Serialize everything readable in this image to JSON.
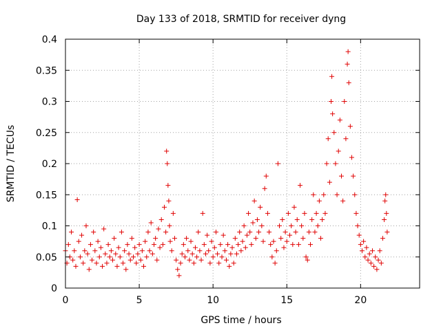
{
  "chart_data": {
    "type": "scatter",
    "title": "Day 133 of 2018, SRMTID for receiver dyng",
    "xlabel": "GPS time / hours",
    "ylabel": "SRMTID / TECUs",
    "xlim": [
      0,
      24
    ],
    "ylim": [
      0,
      0.4
    ],
    "xticks": [
      0,
      5,
      10,
      15,
      20
    ],
    "yticks": [
      0,
      0.05,
      0.1,
      0.15,
      0.2,
      0.25,
      0.3,
      0.35,
      0.4
    ],
    "xtick_labels": [
      "0",
      "5",
      "10",
      "15",
      "20"
    ],
    "ytick_labels": [
      "0",
      "0.05",
      "0.1",
      "0.15",
      "0.2",
      "0.25",
      "0.3",
      "0.35",
      "0.4"
    ],
    "grid": true,
    "marker": "+",
    "color": "#e00000",
    "series": [
      {
        "name": "SRMTID",
        "points": [
          [
            0.0,
            0.06
          ],
          [
            0.1,
            0.04
          ],
          [
            0.2,
            0.07
          ],
          [
            0.3,
            0.05
          ],
          [
            0.4,
            0.09
          ],
          [
            0.5,
            0.045
          ],
          [
            0.6,
            0.06
          ],
          [
            0.7,
            0.035
          ],
          [
            0.8,
            0.142
          ],
          [
            0.9,
            0.075
          ],
          [
            1.0,
            0.05
          ],
          [
            1.1,
            0.085
          ],
          [
            1.2,
            0.04
          ],
          [
            1.3,
            0.06
          ],
          [
            1.4,
            0.1
          ],
          [
            1.5,
            0.055
          ],
          [
            1.6,
            0.03
          ],
          [
            1.7,
            0.07
          ],
          [
            1.8,
            0.045
          ],
          [
            1.9,
            0.09
          ],
          [
            2.0,
            0.06
          ],
          [
            2.1,
            0.04
          ],
          [
            2.2,
            0.075
          ],
          [
            2.3,
            0.05
          ],
          [
            2.4,
            0.065
          ],
          [
            2.5,
            0.035
          ],
          [
            2.6,
            0.095
          ],
          [
            2.7,
            0.055
          ],
          [
            2.8,
            0.04
          ],
          [
            2.9,
            0.07
          ],
          [
            3.0,
            0.05
          ],
          [
            3.1,
            0.06
          ],
          [
            3.2,
            0.045
          ],
          [
            3.3,
            0.08
          ],
          [
            3.4,
            0.055
          ],
          [
            3.5,
            0.035
          ],
          [
            3.6,
            0.065
          ],
          [
            3.7,
            0.05
          ],
          [
            3.8,
            0.09
          ],
          [
            3.9,
            0.04
          ],
          [
            4.0,
            0.06
          ],
          [
            4.1,
            0.03
          ],
          [
            4.2,
            0.07
          ],
          [
            4.3,
            0.055
          ],
          [
            4.4,
            0.045
          ],
          [
            4.5,
            0.08
          ],
          [
            4.6,
            0.05
          ],
          [
            4.7,
            0.065
          ],
          [
            4.8,
            0.04
          ],
          [
            4.9,
            0.055
          ],
          [
            5.0,
            0.07
          ],
          [
            5.1,
            0.045
          ],
          [
            5.2,
            0.06
          ],
          [
            5.3,
            0.035
          ],
          [
            5.4,
            0.075
          ],
          [
            5.5,
            0.05
          ],
          [
            5.6,
            0.09
          ],
          [
            5.7,
            0.06
          ],
          [
            5.8,
            0.105
          ],
          [
            5.9,
            0.055
          ],
          [
            6.0,
            0.07
          ],
          [
            6.1,
            0.08
          ],
          [
            6.2,
            0.045
          ],
          [
            6.3,
            0.095
          ],
          [
            6.4,
            0.065
          ],
          [
            6.5,
            0.11
          ],
          [
            6.6,
            0.07
          ],
          [
            6.7,
            0.13
          ],
          [
            6.8,
            0.09
          ],
          [
            6.85,
            0.22
          ],
          [
            6.9,
            0.2
          ],
          [
            6.95,
            0.165
          ],
          [
            7.0,
            0.14
          ],
          [
            7.05,
            0.1
          ],
          [
            7.1,
            0.075
          ],
          [
            7.2,
            0.06
          ],
          [
            7.3,
            0.12
          ],
          [
            7.4,
            0.08
          ],
          [
            7.5,
            0.045
          ],
          [
            7.6,
            0.03
          ],
          [
            7.7,
            0.02
          ],
          [
            7.8,
            0.04
          ],
          [
            7.9,
            0.055
          ],
          [
            8.0,
            0.07
          ],
          [
            8.1,
            0.05
          ],
          [
            8.2,
            0.08
          ],
          [
            8.3,
            0.06
          ],
          [
            8.4,
            0.045
          ],
          [
            8.5,
            0.075
          ],
          [
            8.6,
            0.055
          ],
          [
            8.7,
            0.04
          ],
          [
            8.8,
            0.065
          ],
          [
            8.9,
            0.05
          ],
          [
            9.0,
            0.09
          ],
          [
            9.1,
            0.06
          ],
          [
            9.2,
            0.045
          ],
          [
            9.3,
            0.12
          ],
          [
            9.4,
            0.07
          ],
          [
            9.5,
            0.055
          ],
          [
            9.6,
            0.085
          ],
          [
            9.7,
            0.06
          ],
          [
            9.8,
            0.04
          ],
          [
            9.9,
            0.075
          ],
          [
            10.0,
            0.05
          ],
          [
            10.1,
            0.065
          ],
          [
            10.2,
            0.09
          ],
          [
            10.3,
            0.055
          ],
          [
            10.4,
            0.04
          ],
          [
            10.5,
            0.07
          ],
          [
            10.6,
            0.05
          ],
          [
            10.7,
            0.085
          ],
          [
            10.8,
            0.06
          ],
          [
            10.9,
            0.045
          ],
          [
            11.0,
            0.07
          ],
          [
            11.1,
            0.035
          ],
          [
            11.2,
            0.055
          ],
          [
            11.3,
            0.065
          ],
          [
            11.4,
            0.04
          ],
          [
            11.5,
            0.08
          ],
          [
            11.6,
            0.055
          ],
          [
            11.7,
            0.07
          ],
          [
            11.8,
            0.09
          ],
          [
            11.9,
            0.06
          ],
          [
            12.0,
            0.075
          ],
          [
            12.1,
            0.1
          ],
          [
            12.2,
            0.065
          ],
          [
            12.3,
            0.085
          ],
          [
            12.4,
            0.12
          ],
          [
            12.5,
            0.09
          ],
          [
            12.6,
            0.07
          ],
          [
            12.7,
            0.105
          ],
          [
            12.8,
            0.14
          ],
          [
            12.9,
            0.08
          ],
          [
            13.0,
            0.11
          ],
          [
            13.1,
            0.09
          ],
          [
            13.2,
            0.13
          ],
          [
            13.3,
            0.1
          ],
          [
            13.4,
            0.075
          ],
          [
            13.5,
            0.16
          ],
          [
            13.6,
            0.18
          ],
          [
            13.7,
            0.12
          ],
          [
            13.8,
            0.09
          ],
          [
            13.9,
            0.07
          ],
          [
            14.0,
            0.05
          ],
          [
            14.1,
            0.075
          ],
          [
            14.2,
            0.04
          ],
          [
            14.3,
            0.06
          ],
          [
            14.4,
            0.2
          ],
          [
            14.5,
            0.1
          ],
          [
            14.6,
            0.08
          ],
          [
            14.7,
            0.11
          ],
          [
            14.8,
            0.065
          ],
          [
            14.9,
            0.09
          ],
          [
            15.0,
            0.075
          ],
          [
            15.1,
            0.12
          ],
          [
            15.2,
            0.085
          ],
          [
            15.3,
            0.1
          ],
          [
            15.4,
            0.07
          ],
          [
            15.5,
            0.13
          ],
          [
            15.6,
            0.09
          ],
          [
            15.7,
            0.11
          ],
          [
            15.8,
            0.07
          ],
          [
            15.9,
            0.165
          ],
          [
            16.0,
            0.1
          ],
          [
            16.1,
            0.08
          ],
          [
            16.2,
            0.12
          ],
          [
            16.3,
            0.05
          ],
          [
            16.4,
            0.045
          ],
          [
            16.5,
            0.09
          ],
          [
            16.6,
            0.07
          ],
          [
            16.7,
            0.11
          ],
          [
            16.8,
            0.15
          ],
          [
            16.9,
            0.09
          ],
          [
            17.0,
            0.12
          ],
          [
            17.1,
            0.1
          ],
          [
            17.2,
            0.14
          ],
          [
            17.3,
            0.08
          ],
          [
            17.4,
            0.11
          ],
          [
            17.5,
            0.15
          ],
          [
            17.6,
            0.12
          ],
          [
            17.7,
            0.2
          ],
          [
            17.8,
            0.24
          ],
          [
            17.9,
            0.17
          ],
          [
            18.0,
            0.3
          ],
          [
            18.05,
            0.34
          ],
          [
            18.1,
            0.28
          ],
          [
            18.2,
            0.25
          ],
          [
            18.3,
            0.2
          ],
          [
            18.4,
            0.15
          ],
          [
            18.5,
            0.22
          ],
          [
            18.6,
            0.27
          ],
          [
            18.7,
            0.18
          ],
          [
            18.8,
            0.14
          ],
          [
            18.9,
            0.3
          ],
          [
            19.0,
            0.24
          ],
          [
            19.1,
            0.36
          ],
          [
            19.15,
            0.38
          ],
          [
            19.2,
            0.33
          ],
          [
            19.3,
            0.26
          ],
          [
            19.4,
            0.21
          ],
          [
            19.5,
            0.18
          ],
          [
            19.6,
            0.15
          ],
          [
            19.7,
            0.12
          ],
          [
            19.8,
            0.1
          ],
          [
            19.9,
            0.085
          ],
          [
            20.0,
            0.07
          ],
          [
            20.1,
            0.06
          ],
          [
            20.2,
            0.075
          ],
          [
            20.3,
            0.05
          ],
          [
            20.4,
            0.065
          ],
          [
            20.5,
            0.045
          ],
          [
            20.6,
            0.055
          ],
          [
            20.7,
            0.04
          ],
          [
            20.8,
            0.06
          ],
          [
            20.9,
            0.035
          ],
          [
            21.0,
            0.05
          ],
          [
            21.1,
            0.03
          ],
          [
            21.2,
            0.045
          ],
          [
            21.3,
            0.06
          ],
          [
            21.4,
            0.04
          ],
          [
            21.5,
            0.08
          ],
          [
            21.6,
            0.11
          ],
          [
            21.65,
            0.14
          ],
          [
            21.7,
            0.15
          ],
          [
            21.75,
            0.12
          ],
          [
            21.8,
            0.09
          ]
        ]
      }
    ]
  }
}
